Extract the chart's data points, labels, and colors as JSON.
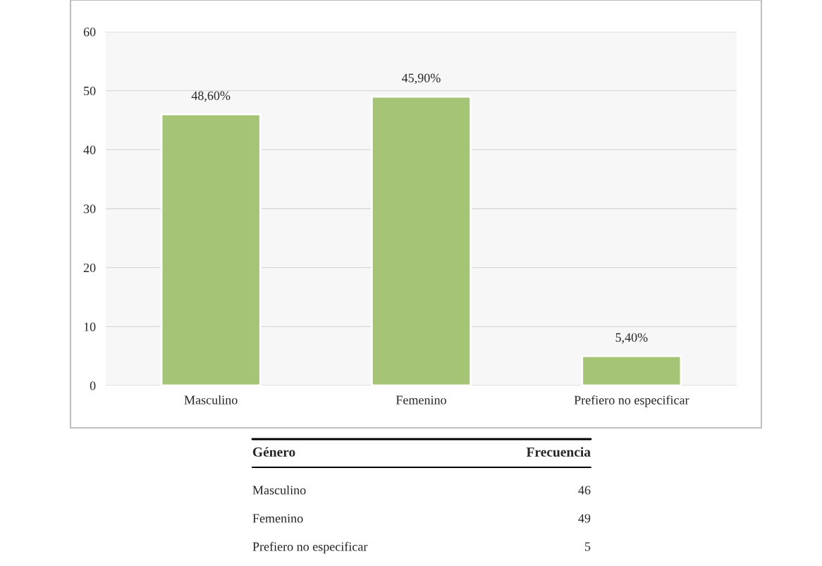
{
  "chart_data": {
    "type": "bar",
    "categories": [
      "Masculino",
      "Femenino",
      "Prefiero no especificar"
    ],
    "values": [
      46,
      49,
      5
    ],
    "color": "#a6c476",
    "ylim": [
      0,
      60
    ],
    "yticks": [
      0,
      10,
      20,
      30,
      40,
      50,
      60
    ],
    "grid": "y",
    "annotations": [
      {
        "text": "48,60%",
        "x": "Masculino",
        "y": 46
      },
      {
        "text": "45,90%",
        "x": "Femenino",
        "y": 49
      },
      {
        "text": "5,40%",
        "x": "Prefiero no especificar",
        "y": 5
      },
      "Género",
      "Frecuencia",
      "Masculino",
      "46",
      "Femenino",
      "49",
      "Prefiero no especificar",
      "5"
    ]
  }
}
